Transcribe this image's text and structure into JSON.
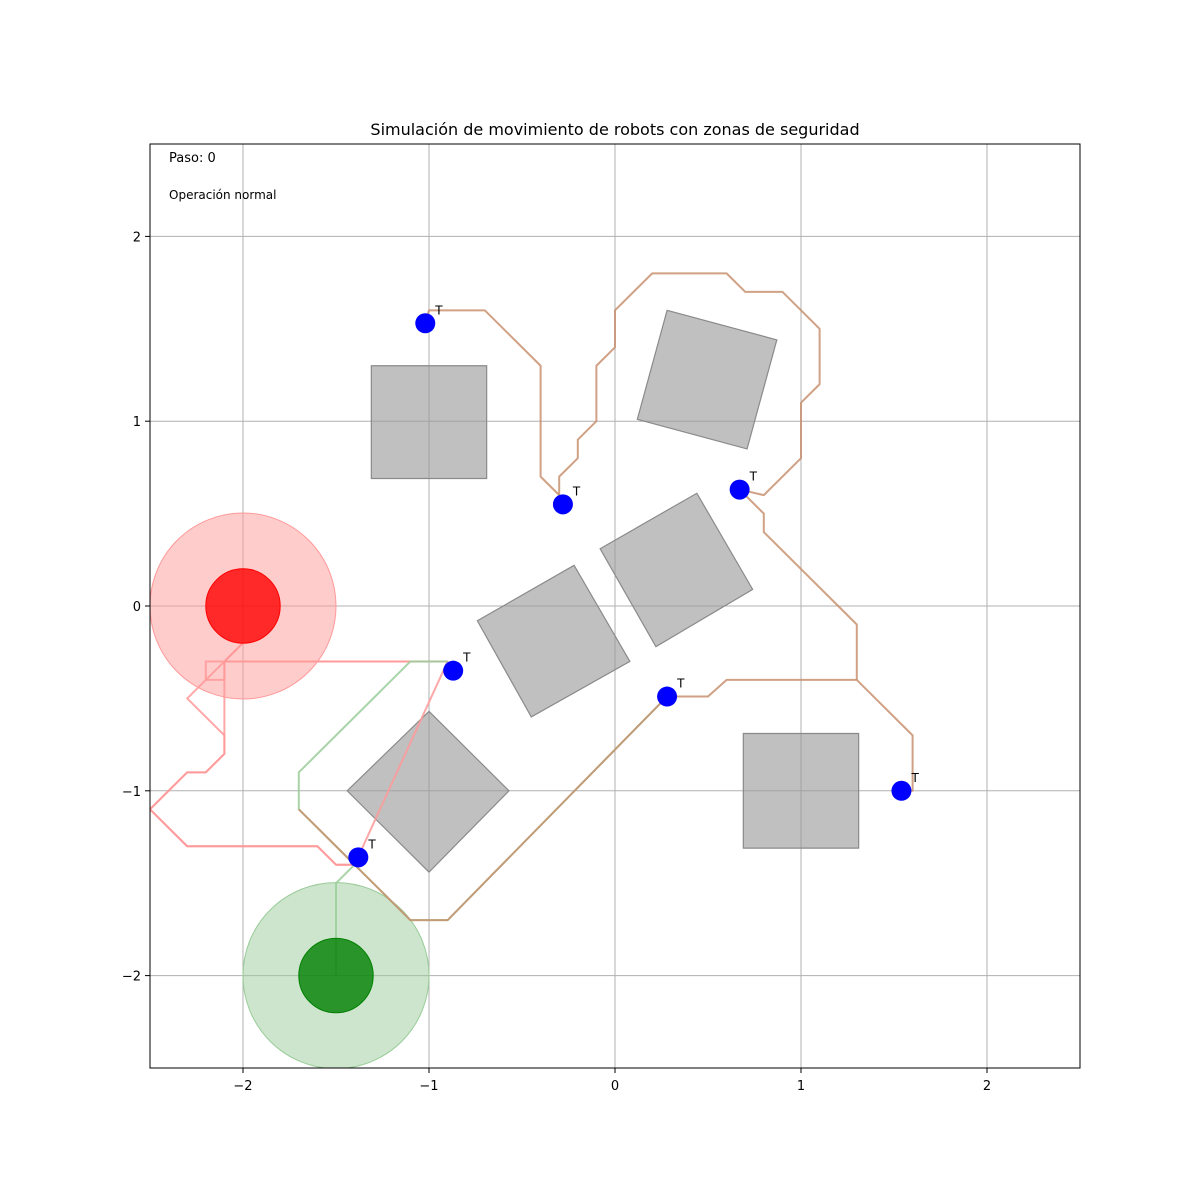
{
  "chart_data": {
    "type": "scatter",
    "title": "Simulación de movimiento de robots con zonas de seguridad",
    "xlabel": "",
    "ylabel": "",
    "xlim": [
      -2.5,
      2.5
    ],
    "ylim": [
      -2.5,
      2.5
    ],
    "xticks": [
      -2,
      -1,
      0,
      1,
      2
    ],
    "yticks": [
      -2,
      -1,
      0,
      1,
      2
    ],
    "x_tick_labels": [
      "−2",
      "−1",
      "0",
      "1",
      "2"
    ],
    "y_tick_labels": [
      "−2",
      "−1",
      "0",
      "1",
      "2"
    ],
    "grid": true,
    "annotations": {
      "step": "Paso: 0",
      "status": "Operación normal"
    },
    "robots": [
      {
        "name": "red",
        "x": -2.0,
        "y": 0.0,
        "radius": 0.2,
        "safety_radius": 0.5,
        "color": "#ff0000",
        "zone_color": "#ff9999"
      },
      {
        "name": "green",
        "x": -1.5,
        "y": -2.0,
        "radius": 0.2,
        "safety_radius": 0.5,
        "color": "#008000",
        "zone_color": "#99cc99"
      }
    ],
    "obstacles": [
      {
        "points": [
          [
            -1.31,
            1.3
          ],
          [
            -0.69,
            1.3
          ],
          [
            -0.69,
            0.69
          ],
          [
            -1.31,
            0.69
          ]
        ]
      },
      {
        "points": [
          [
            0.28,
            1.6
          ],
          [
            0.87,
            1.44
          ],
          [
            0.71,
            0.85
          ],
          [
            0.12,
            1.01
          ]
        ]
      },
      {
        "points": [
          [
            -0.08,
            0.31
          ],
          [
            0.44,
            0.61
          ],
          [
            0.74,
            0.09
          ],
          [
            0.22,
            -0.22
          ]
        ]
      },
      {
        "points": [
          [
            -0.74,
            -0.08
          ],
          [
            -0.22,
            0.22
          ],
          [
            0.08,
            -0.3
          ],
          [
            -0.45,
            -0.6
          ]
        ]
      },
      {
        "points": [
          [
            -1.44,
            -1.0
          ],
          [
            -1.0,
            -0.57
          ],
          [
            -0.57,
            -1.0
          ],
          [
            -1.0,
            -1.44
          ]
        ]
      },
      {
        "points": [
          [
            0.69,
            -0.69
          ],
          [
            1.31,
            -0.69
          ],
          [
            1.31,
            -1.31
          ],
          [
            0.69,
            -1.31
          ]
        ]
      }
    ],
    "targets": [
      {
        "label": "T",
        "x": -1.02,
        "y": 1.53
      },
      {
        "label": "T",
        "x": -0.28,
        "y": 0.55
      },
      {
        "label": "T",
        "x": 0.67,
        "y": 0.63
      },
      {
        "label": "T",
        "x": -0.87,
        "y": -0.35
      },
      {
        "label": "T",
        "x": 0.28,
        "y": -0.49
      },
      {
        "label": "T",
        "x": -1.38,
        "y": -1.36
      },
      {
        "label": "T",
        "x": 1.54,
        "y": -1.0
      }
    ],
    "paths": [
      {
        "color": "#ff9999",
        "points": [
          [
            -2.0,
            -0.2
          ],
          [
            -2.1,
            -0.3
          ],
          [
            -2.3,
            -0.5
          ],
          [
            -2.1,
            -0.7
          ],
          [
            -2.1,
            -0.8
          ],
          [
            -2.2,
            -0.9
          ],
          [
            -2.3,
            -0.9
          ],
          [
            -2.5,
            -1.1
          ],
          [
            -2.3,
            -1.3
          ],
          [
            -1.6,
            -1.3
          ],
          [
            -1.5,
            -1.4
          ],
          [
            -1.4,
            -1.4
          ],
          [
            -0.9,
            -0.3
          ],
          [
            -2.2,
            -0.3
          ],
          [
            -2.2,
            -0.4
          ],
          [
            -2.3,
            -0.5
          ]
        ]
      },
      {
        "color": "#ff9999",
        "points": [
          [
            -0.9,
            -0.3
          ],
          [
            -2.1,
            -0.3
          ],
          [
            -2.1,
            -0.4
          ],
          [
            -2.2,
            -0.4
          ]
        ]
      },
      {
        "color": "#ff9999",
        "points": [
          [
            -2.0,
            -0.2
          ],
          [
            -2.1,
            -0.3
          ],
          [
            -2.1,
            -0.8
          ],
          [
            -2.2,
            -0.9
          ],
          [
            -2.3,
            -0.9
          ],
          [
            -2.5,
            -1.1
          ],
          [
            -2.3,
            -1.3
          ],
          [
            -1.6,
            -1.3
          ],
          [
            -1.5,
            -1.4
          ],
          [
            -1.4,
            -1.4
          ]
        ]
      },
      {
        "color": "#99cc99",
        "points": [
          [
            -1.5,
            -2.0
          ],
          [
            -1.5,
            -1.5
          ],
          [
            -1.4,
            -1.4
          ]
        ]
      },
      {
        "color": "#99cc99",
        "points": [
          [
            -0.9,
            -0.3
          ],
          [
            -1.1,
            -0.3
          ],
          [
            -1.7,
            -0.9
          ],
          [
            -1.7,
            -1.1
          ],
          [
            -1.5,
            -1.3
          ],
          [
            -1.3,
            -1.5
          ],
          [
            -1.1,
            -1.7
          ],
          [
            -0.9,
            -1.7
          ],
          [
            0.28,
            -0.49
          ]
        ]
      },
      {
        "color": "#c8906e",
        "points": [
          [
            -1.7,
            -1.1
          ],
          [
            -1.5,
            -1.3
          ],
          [
            -1.3,
            -1.5
          ],
          [
            -1.1,
            -1.7
          ],
          [
            -0.9,
            -1.7
          ],
          [
            0.28,
            -0.49
          ],
          [
            0.5,
            -0.49
          ],
          [
            0.6,
            -0.4
          ],
          [
            1.3,
            -0.4
          ],
          [
            1.6,
            -0.7
          ],
          [
            1.6,
            -1.0
          ],
          [
            1.54,
            -1.0
          ]
        ]
      },
      {
        "color": "#c8906e",
        "points": [
          [
            1.3,
            -0.4
          ],
          [
            1.3,
            -0.1
          ],
          [
            0.8,
            0.4
          ],
          [
            0.8,
            0.5
          ],
          [
            0.7,
            0.6
          ],
          [
            0.67,
            0.63
          ],
          [
            0.8,
            0.6
          ],
          [
            1.0,
            0.8
          ],
          [
            1.0,
            1.1
          ],
          [
            1.1,
            1.2
          ],
          [
            1.1,
            1.5
          ],
          [
            0.9,
            1.7
          ],
          [
            0.7,
            1.7
          ],
          [
            0.6,
            1.8
          ],
          [
            0.2,
            1.8
          ],
          [
            0.0,
            1.6
          ],
          [
            0.0,
            1.4
          ],
          [
            -0.1,
            1.3
          ],
          [
            -0.1,
            1.0
          ],
          [
            -0.2,
            0.9
          ],
          [
            -0.2,
            0.8
          ],
          [
            -0.3,
            0.7
          ],
          [
            -0.3,
            0.6
          ],
          [
            -0.28,
            0.55
          ]
        ]
      },
      {
        "color": "#c8906e",
        "points": [
          [
            -0.3,
            0.6
          ],
          [
            -0.4,
            0.7
          ],
          [
            -0.4,
            1.3
          ],
          [
            -0.7,
            1.6
          ],
          [
            -1.0,
            1.6
          ],
          [
            -1.02,
            1.53
          ]
        ]
      }
    ]
  }
}
